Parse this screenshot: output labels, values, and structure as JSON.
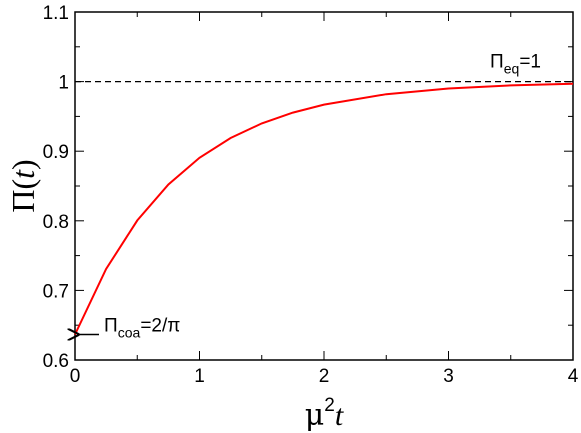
{
  "chart_data": {
    "type": "line",
    "x_label": {
      "base": "μ",
      "sup": "2",
      "var": "t"
    },
    "y_label": {
      "base": "Π(",
      "var": "t",
      "end": ")"
    },
    "x": [
      0,
      0.25,
      0.5,
      0.75,
      1,
      1.25,
      1.5,
      1.75,
      2,
      2.5,
      3,
      3.5,
      4
    ],
    "series": [
      {
        "color": "#ff0000",
        "values": [
          0.6366,
          0.7308,
          0.8006,
          0.8522,
          0.8905,
          0.9189,
          0.9399,
          0.9555,
          0.967,
          0.9819,
          0.9901,
          0.9945,
          0.997
        ]
      }
    ],
    "xlim": [
      0,
      4
    ],
    "ylim": [
      0.6,
      1.1
    ],
    "xticks": [
      0,
      1,
      2,
      3,
      4
    ],
    "yticks": [
      0.6,
      0.7,
      0.8,
      0.9,
      1,
      1.1
    ],
    "xticks_minor": [
      0.5,
      1.5,
      2.5,
      3.5
    ],
    "yticks_minor": [
      0.65,
      0.75,
      0.85,
      0.95,
      1.05
    ],
    "reference_line": {
      "value": 1,
      "style": "dashed",
      "label": {
        "symbol": "Π",
        "sub": "eq",
        "text": "=1"
      }
    },
    "arrow_annotation": {
      "value": 0.6366,
      "label": {
        "symbol": "Π",
        "sub": "coa",
        "text": "=2/π"
      }
    }
  }
}
